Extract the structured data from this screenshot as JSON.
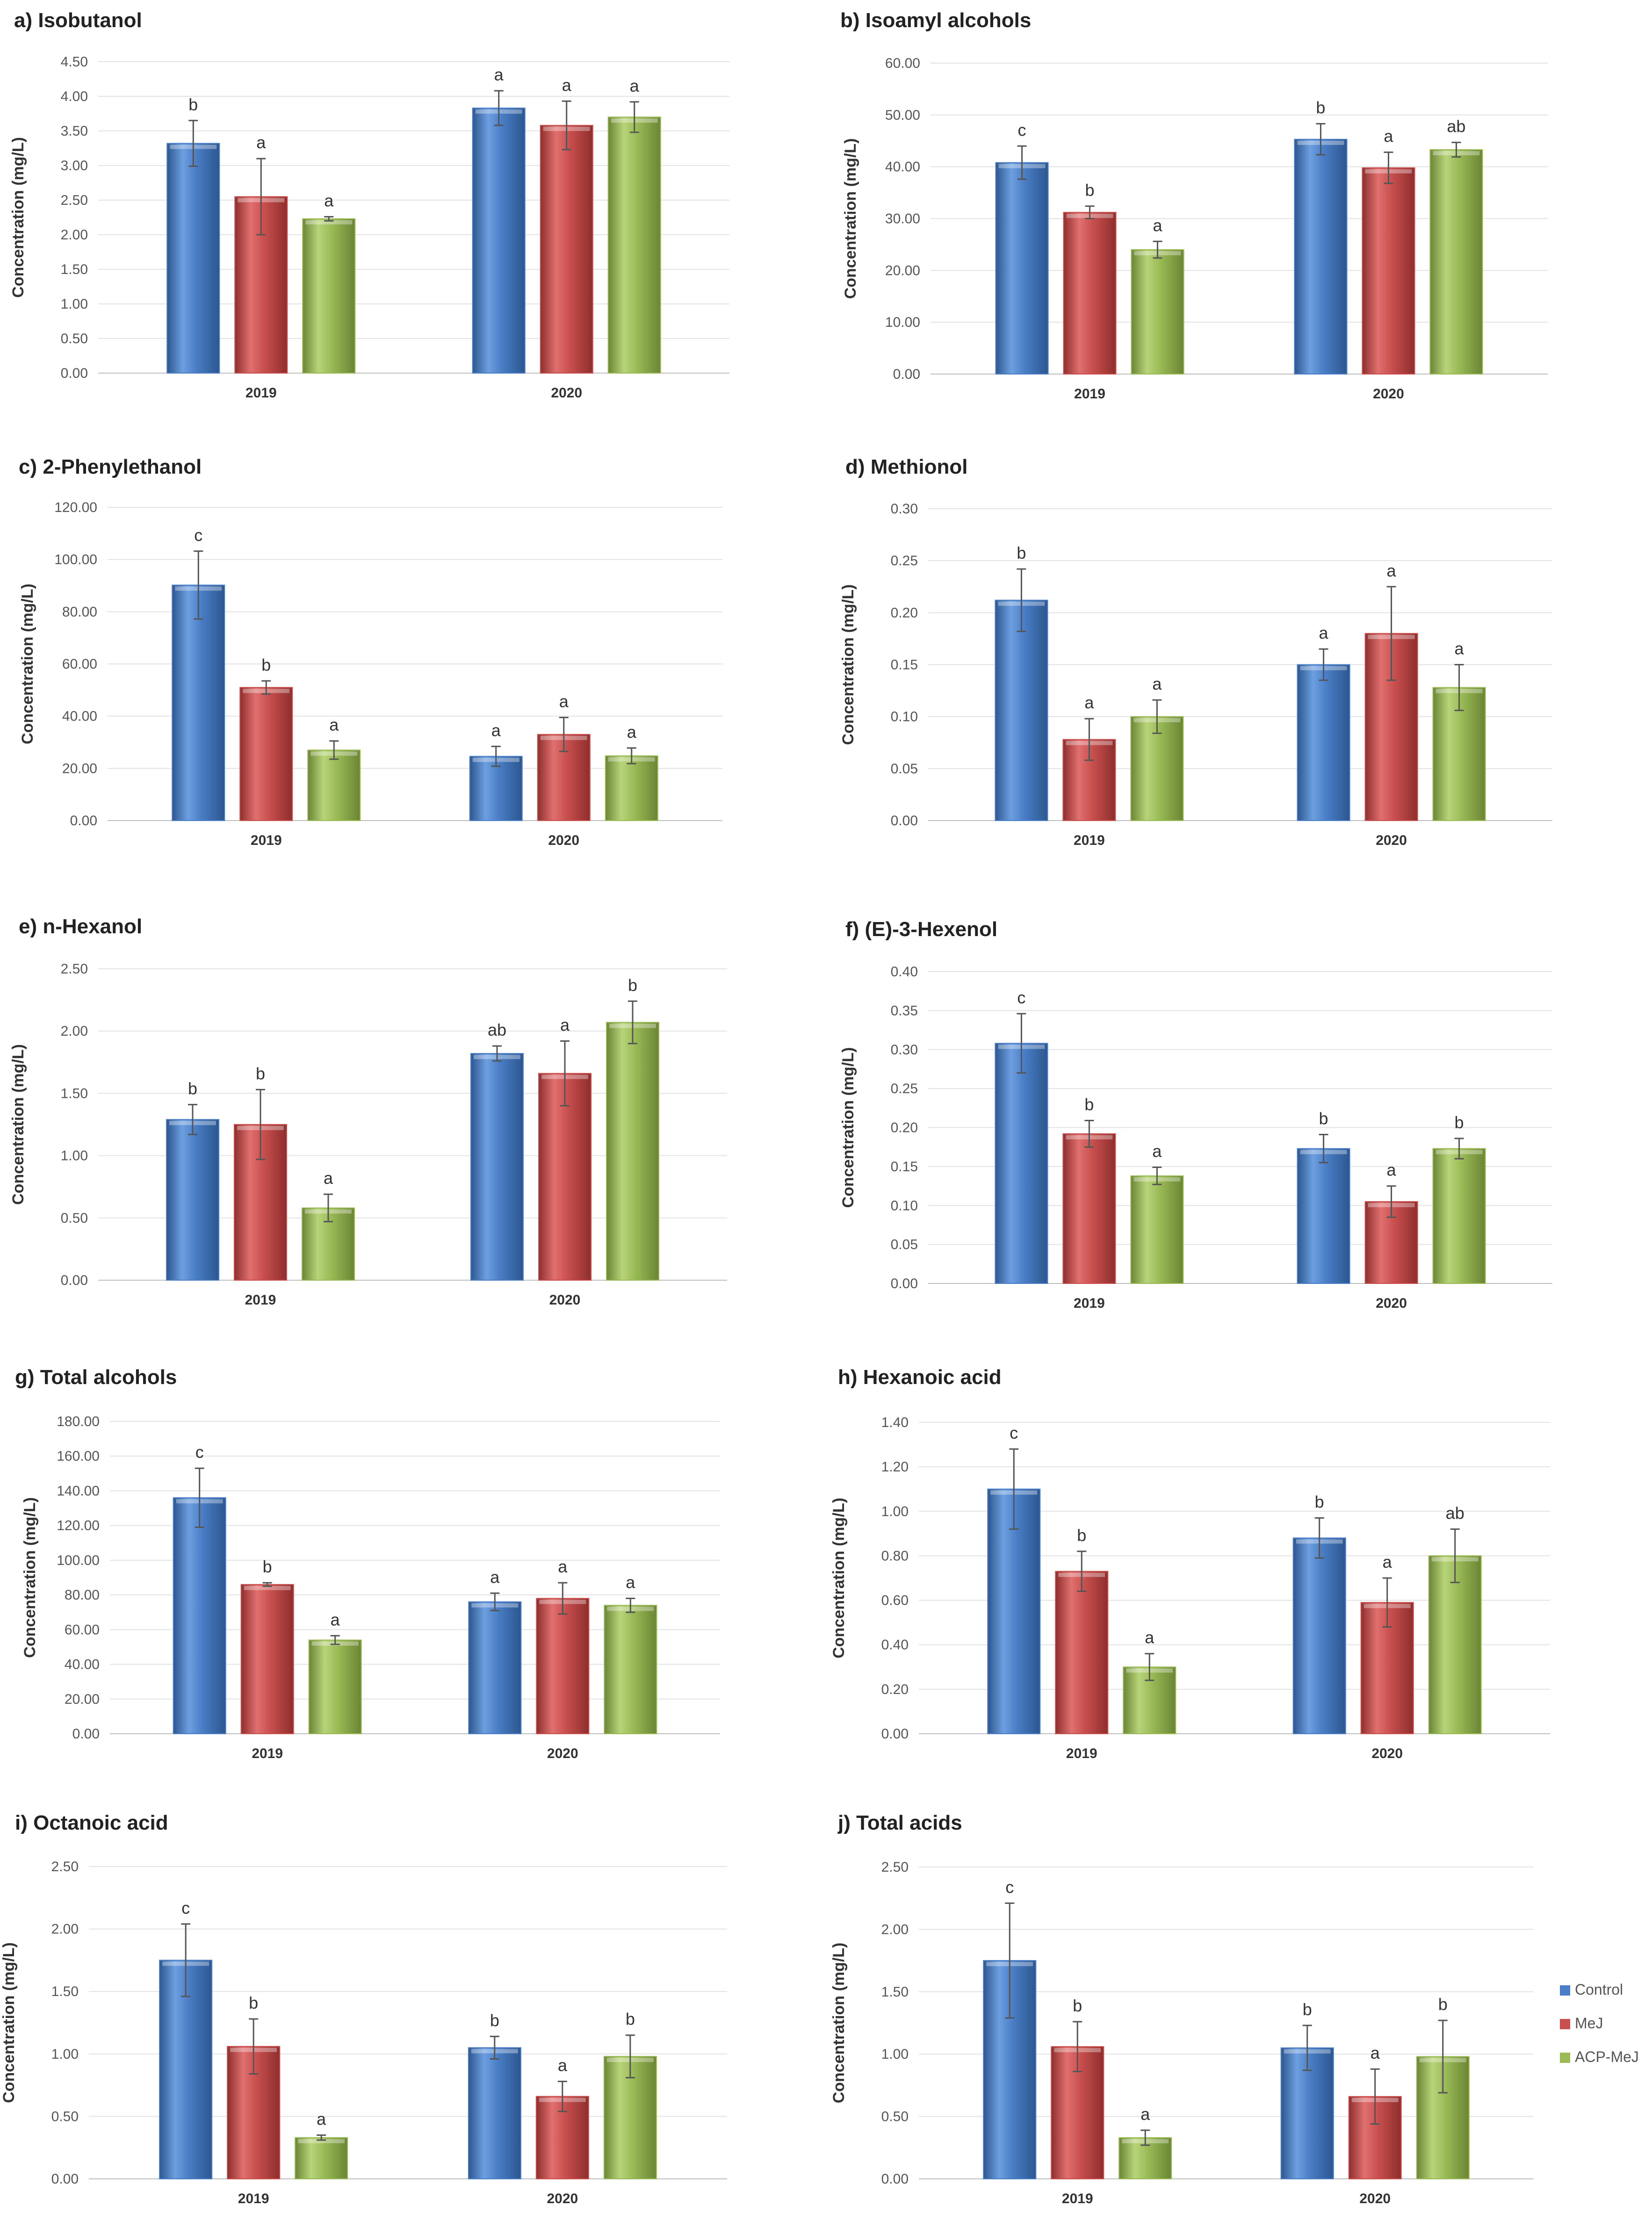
{
  "colors": {
    "Control": "#4a7ec6",
    "MeJ": "#c9504f",
    "ACP-MeJ": "#9aba56"
  },
  "legend": [
    "Control",
    "MeJ",
    "ACP-MeJ"
  ],
  "chart_data": [
    {
      "type": "bar",
      "title": "a) Isobutanol",
      "ylabel": "Concentration (mg/L)",
      "categories": [
        "2019",
        "2020"
      ],
      "ylim": [
        0,
        4.5
      ],
      "yticks": [
        "0.00",
        "0.50",
        "1.00",
        "1.50",
        "2.00",
        "2.50",
        "3.00",
        "3.50",
        "4.00",
        "4.50"
      ],
      "series": [
        {
          "name": "Control",
          "values": [
            3.32,
            3.83
          ],
          "errors": [
            0.33,
            0.25
          ],
          "letters": [
            "b",
            "a"
          ]
        },
        {
          "name": "MeJ",
          "values": [
            2.55,
            3.58
          ],
          "errors": [
            0.55,
            0.35
          ],
          "letters": [
            "a",
            "a"
          ]
        },
        {
          "name": "ACP-MeJ",
          "values": [
            2.23,
            3.7
          ],
          "errors": [
            0.03,
            0.22
          ],
          "letters": [
            "a",
            "a"
          ]
        }
      ]
    },
    {
      "type": "bar",
      "title": "b) Isoamyl alcohols",
      "ylabel": "Concentration (mg/L)",
      "categories": [
        "2019",
        "2020"
      ],
      "ylim": [
        0,
        60
      ],
      "yticks": [
        "0.00",
        "10.00",
        "20.00",
        "30.00",
        "40.00",
        "50.00",
        "60.00"
      ],
      "series": [
        {
          "name": "Control",
          "values": [
            40.8,
            45.3
          ],
          "errors": [
            3.2,
            3.0
          ],
          "letters": [
            "c",
            "b"
          ]
        },
        {
          "name": "MeJ",
          "values": [
            31.2,
            39.8
          ],
          "errors": [
            1.2,
            3.0
          ],
          "letters": [
            "b",
            "a"
          ]
        },
        {
          "name": "ACP-MeJ",
          "values": [
            24.0,
            43.3
          ],
          "errors": [
            1.6,
            1.4
          ],
          "letters": [
            "a",
            "ab"
          ]
        }
      ]
    },
    {
      "type": "bar",
      "title": "c) 2-Phenylethanol",
      "ylabel": "Concentration (mg/L)",
      "categories": [
        "2019",
        "2020"
      ],
      "ylim": [
        0,
        120
      ],
      "yticks": [
        "0.00",
        "20.00",
        "40.00",
        "60.00",
        "80.00",
        "100.00",
        "120.00"
      ],
      "series": [
        {
          "name": "Control",
          "values": [
            90.2,
            24.6
          ],
          "errors": [
            13.0,
            3.8
          ],
          "letters": [
            "c",
            "a"
          ]
        },
        {
          "name": "MeJ",
          "values": [
            51.0,
            33.0
          ],
          "errors": [
            2.5,
            6.5
          ],
          "letters": [
            "b",
            "a"
          ]
        },
        {
          "name": "ACP-MeJ",
          "values": [
            27.0,
            24.8
          ],
          "errors": [
            3.5,
            3.0
          ],
          "letters": [
            "a",
            "a"
          ]
        }
      ]
    },
    {
      "type": "bar",
      "title": "d) Methionol",
      "ylabel": "Concentration (mg/L)",
      "categories": [
        "2019",
        "2020"
      ],
      "ylim": [
        0,
        0.3
      ],
      "yticks": [
        "0.00",
        "0.05",
        "0.10",
        "0.15",
        "0.20",
        "0.25",
        "0.30"
      ],
      "series": [
        {
          "name": "Control",
          "values": [
            0.212,
            0.15
          ],
          "errors": [
            0.03,
            0.015
          ],
          "letters": [
            "b",
            "a"
          ]
        },
        {
          "name": "MeJ",
          "values": [
            0.078,
            0.18
          ],
          "errors": [
            0.02,
            0.045
          ],
          "letters": [
            "a",
            "a"
          ]
        },
        {
          "name": "ACP-MeJ",
          "values": [
            0.1,
            0.128
          ],
          "errors": [
            0.016,
            0.022
          ],
          "letters": [
            "a",
            "a"
          ]
        }
      ]
    },
    {
      "type": "bar",
      "title": "e) n-Hexanol",
      "ylabel": "Concentration (mg/L)",
      "categories": [
        "2019",
        "2020"
      ],
      "ylim": [
        0,
        2.5
      ],
      "yticks": [
        "0.00",
        "0.50",
        "1.00",
        "1.50",
        "2.00",
        "2.50"
      ],
      "series": [
        {
          "name": "Control",
          "values": [
            1.29,
            1.82
          ],
          "errors": [
            0.12,
            0.06
          ],
          "letters": [
            "b",
            "ab"
          ]
        },
        {
          "name": "MeJ",
          "values": [
            1.25,
            1.66
          ],
          "errors": [
            0.28,
            0.26
          ],
          "letters": [
            "b",
            "a"
          ]
        },
        {
          "name": "ACP-MeJ",
          "values": [
            0.58,
            2.07
          ],
          "errors": [
            0.11,
            0.17
          ],
          "letters": [
            "a",
            "b"
          ]
        }
      ]
    },
    {
      "type": "bar",
      "title": "f) (E)-3-Hexenol",
      "ylabel": "Concentration (mg/L)",
      "categories": [
        "2019",
        "2020"
      ],
      "ylim": [
        0,
        0.4
      ],
      "yticks": [
        "0.00",
        "0.05",
        "0.10",
        "0.15",
        "0.20",
        "0.25",
        "0.30",
        "0.35",
        "0.40"
      ],
      "series": [
        {
          "name": "Control",
          "values": [
            0.308,
            0.173
          ],
          "errors": [
            0.038,
            0.018
          ],
          "letters": [
            "c",
            "b"
          ]
        },
        {
          "name": "MeJ",
          "values": [
            0.192,
            0.105
          ],
          "errors": [
            0.017,
            0.02
          ],
          "letters": [
            "b",
            "a"
          ]
        },
        {
          "name": "ACP-MeJ",
          "values": [
            0.138,
            0.173
          ],
          "errors": [
            0.011,
            0.013
          ],
          "letters": [
            "a",
            "b"
          ]
        }
      ]
    },
    {
      "type": "bar",
      "title": "g) Total alcohols",
      "ylabel": "Concentration (mg/L)",
      "categories": [
        "2019",
        "2020"
      ],
      "ylim": [
        0,
        180
      ],
      "yticks": [
        "0.00",
        "20.00",
        "40.00",
        "60.00",
        "80.00",
        "100.00",
        "120.00",
        "140.00",
        "160.00",
        "180.00"
      ],
      "series": [
        {
          "name": "Control",
          "values": [
            136.0,
            76.0
          ],
          "errors": [
            17.0,
            5.0
          ],
          "letters": [
            "c",
            "a"
          ]
        },
        {
          "name": "MeJ",
          "values": [
            86.0,
            78.0
          ],
          "errors": [
            1.0,
            9.0
          ],
          "letters": [
            "b",
            "a"
          ]
        },
        {
          "name": "ACP-MeJ",
          "values": [
            54.0,
            74.0
          ],
          "errors": [
            2.5,
            4.0
          ],
          "letters": [
            "a",
            "a"
          ]
        }
      ]
    },
    {
      "type": "bar",
      "title": "h) Hexanoic acid",
      "ylabel": "Concentration (mg/L)",
      "categories": [
        "2019",
        "2020"
      ],
      "ylim": [
        0,
        1.4
      ],
      "yticks": [
        "0.00",
        "0.20",
        "0.40",
        "0.60",
        "0.80",
        "1.00",
        "1.20",
        "1.40"
      ],
      "series": [
        {
          "name": "Control",
          "values": [
            1.1,
            0.88
          ],
          "errors": [
            0.18,
            0.09
          ],
          "letters": [
            "c",
            "b"
          ]
        },
        {
          "name": "MeJ",
          "values": [
            0.73,
            0.59
          ],
          "errors": [
            0.09,
            0.11
          ],
          "letters": [
            "b",
            "a"
          ]
        },
        {
          "name": "ACP-MeJ",
          "values": [
            0.3,
            0.8
          ],
          "errors": [
            0.06,
            0.12
          ],
          "letters": [
            "a",
            "ab"
          ]
        }
      ]
    },
    {
      "type": "bar",
      "title": "i) Octanoic acid",
      "ylabel": "Concentration (mg/L)",
      "categories": [
        "2019",
        "2020"
      ],
      "ylim": [
        0,
        2.5
      ],
      "yticks": [
        "0.00",
        "0.50",
        "1.00",
        "1.50",
        "2.00",
        "2.50"
      ],
      "series": [
        {
          "name": "Control",
          "values": [
            1.75,
            1.05
          ],
          "errors": [
            0.29,
            0.09
          ],
          "letters": [
            "c",
            "b"
          ]
        },
        {
          "name": "MeJ",
          "values": [
            1.06,
            0.66
          ],
          "errors": [
            0.22,
            0.12
          ],
          "letters": [
            "b",
            "a"
          ]
        },
        {
          "name": "ACP-MeJ",
          "values": [
            0.33,
            0.98
          ],
          "errors": [
            0.02,
            0.17
          ],
          "letters": [
            "a",
            "b"
          ]
        }
      ]
    },
    {
      "type": "bar",
      "title": "j) Total acids",
      "ylabel": "Concentration (mg/L)",
      "categories": [
        "2019",
        "2020"
      ],
      "ylim": [
        0,
        2.5
      ],
      "yticks": [
        "0.00",
        "0.50",
        "1.00",
        "1.50",
        "2.00",
        "2.50"
      ],
      "series": [
        {
          "name": "Control",
          "values": [
            1.75,
            1.05
          ],
          "errors": [
            0.46,
            0.18
          ],
          "letters": [
            "c",
            "b"
          ]
        },
        {
          "name": "MeJ",
          "values": [
            1.06,
            0.66
          ],
          "errors": [
            0.2,
            0.22
          ],
          "letters": [
            "b",
            "a"
          ]
        },
        {
          "name": "ACP-MeJ",
          "values": [
            0.33,
            0.98
          ],
          "errors": [
            0.06,
            0.29
          ],
          "letters": [
            "a",
            "b"
          ]
        }
      ]
    }
  ]
}
